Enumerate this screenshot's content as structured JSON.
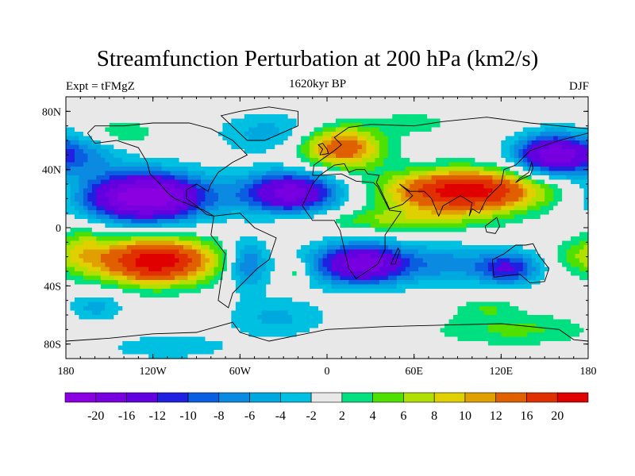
{
  "chart_data": {
    "type": "heatmap",
    "title": "Streamfunction Perturbation at 200 hPa (km2/s)",
    "left_subtitle": "Expt = tFMgZ",
    "center_subtitle": "1620kyr BP",
    "right_subtitle": "DJF",
    "x_ticks": [
      {
        "value": -180,
        "label": "180"
      },
      {
        "value": -120,
        "label": "120W"
      },
      {
        "value": -60,
        "label": "60W"
      },
      {
        "value": 0,
        "label": "0"
      },
      {
        "value": 60,
        "label": "60E"
      },
      {
        "value": 120,
        "label": "120E"
      },
      {
        "value": 180,
        "label": "180"
      }
    ],
    "y_ticks": [
      {
        "value": 80,
        "label": "80N"
      },
      {
        "value": 40,
        "label": "40N"
      },
      {
        "value": 0,
        "label": "0"
      },
      {
        "value": -40,
        "label": "40S"
      },
      {
        "value": -80,
        "label": "80S"
      }
    ],
    "xlim": [
      -180,
      180
    ],
    "ylim": [
      -90,
      90
    ],
    "levels": [
      -20,
      -16,
      -12,
      -10,
      -8,
      -6,
      -4,
      -2,
      2,
      4,
      6,
      8,
      10,
      12,
      16,
      20
    ],
    "level_labels": [
      "-20",
      "-16",
      "-12",
      "-10",
      "-8",
      "-6",
      "-4",
      "-2",
      "2",
      "4",
      "6",
      "8",
      "10",
      "12",
      "16",
      "20"
    ],
    "colors": [
      "#8a00e0",
      "#7800e0",
      "#6200e0",
      "#2020e0",
      "#0a5ee0",
      "#0a8ae0",
      "#00a8e0",
      "#00c0e2",
      "#e8e8e8",
      "#00e080",
      "#50e000",
      "#b0e000",
      "#e0d000",
      "#e0a000",
      "#e06000",
      "#e03000",
      "#e00000"
    ],
    "anomaly_centers": [
      {
        "lon": -125,
        "lat": 21,
        "amp": -24,
        "slon": 30,
        "slat": 12
      },
      {
        "lon": -25,
        "lat": 24,
        "amp": -18,
        "slon": 24,
        "slat": 10
      },
      {
        "lon": -118,
        "lat": -23,
        "amp": 23,
        "slon": 28,
        "slat": 11
      },
      {
        "lon": -168,
        "lat": -15,
        "amp": 6,
        "slon": 12,
        "slat": 12
      },
      {
        "lon": 10,
        "lat": 55,
        "amp": 15,
        "slon": 20,
        "slat": 10
      },
      {
        "lon": 95,
        "lat": 25,
        "amp": 23,
        "slon": 36,
        "slat": 10
      },
      {
        "lon": 50,
        "lat": 5,
        "amp": 6,
        "slon": 40,
        "slat": 6
      },
      {
        "lon": 155,
        "lat": 50,
        "amp": -18,
        "slon": 18,
        "slat": 10
      },
      {
        "lon": 25,
        "lat": -25,
        "amp": -19,
        "slon": 24,
        "slat": 10
      },
      {
        "lon": 125,
        "lat": -28,
        "amp": -12,
        "slon": 15,
        "slat": 8
      },
      {
        "lon": 85,
        "lat": -25,
        "amp": -6,
        "slon": 20,
        "slat": 10
      },
      {
        "lon": -55,
        "lat": -25,
        "amp": -9,
        "slon": 10,
        "slat": 12
      },
      {
        "lon": -20,
        "lat": -30,
        "amp": 5,
        "slon": 5,
        "slat": 5
      },
      {
        "lon": -35,
        "lat": -62,
        "amp": -4.5,
        "slon": 25,
        "slat": 10
      },
      {
        "lon": -160,
        "lat": -55,
        "amp": -5,
        "slon": 14,
        "slat": 8
      },
      {
        "lon": -110,
        "lat": -82,
        "amp": -4,
        "slon": 30,
        "slat": 6
      },
      {
        "lon": 130,
        "lat": -70,
        "amp": 4.5,
        "slon": 40,
        "slat": 8
      },
      {
        "lon": 110,
        "lat": -55,
        "amp": 3.5,
        "slon": 15,
        "slat": 5
      },
      {
        "lon": -140,
        "lat": 65,
        "amp": 4.5,
        "slon": 15,
        "slat": 6
      },
      {
        "lon": -170,
        "lat": 50,
        "amp": -6,
        "slon": 20,
        "slat": 10
      },
      {
        "lon": -40,
        "lat": 65,
        "amp": -5,
        "slon": 25,
        "slat": 10
      },
      {
        "lon": 60,
        "lat": 72,
        "amp": 3,
        "slon": 20,
        "slat": 6
      },
      {
        "lon": 170,
        "lat": -20,
        "amp": 4,
        "slon": 10,
        "slat": 8
      }
    ]
  }
}
